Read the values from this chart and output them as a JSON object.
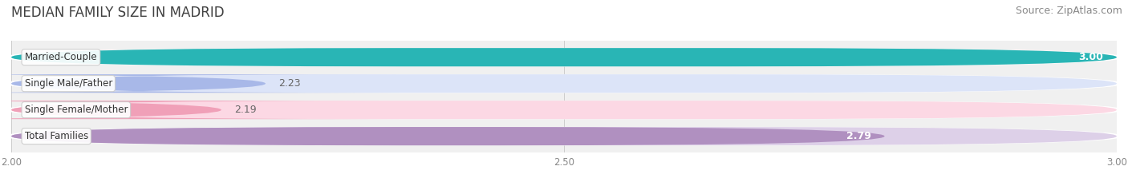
{
  "title": "MEDIAN FAMILY SIZE IN MADRID",
  "source": "Source: ZipAtlas.com",
  "categories": [
    "Married-Couple",
    "Single Male/Father",
    "Single Female/Mother",
    "Total Families"
  ],
  "values": [
    3.0,
    2.23,
    2.19,
    2.79
  ],
  "value_labels": [
    "3.00",
    "2.23",
    "2.19",
    "2.79"
  ],
  "bar_colors": [
    "#29b5b5",
    "#a8b8e8",
    "#f0a0b8",
    "#b090c0"
  ],
  "bar_bg_colors": [
    "#daf0f0",
    "#dce4f8",
    "#fcd8e4",
    "#ddd0e8"
  ],
  "label_inside": [
    true,
    false,
    false,
    true
  ],
  "xlim": [
    2.0,
    3.0
  ],
  "xticks": [
    2.0,
    2.5,
    3.0
  ],
  "xtick_labels": [
    "2.00",
    "2.50",
    "3.00"
  ],
  "figsize": [
    14.06,
    2.33
  ],
  "dpi": 100,
  "title_fontsize": 12,
  "source_fontsize": 9,
  "bar_label_fontsize": 9,
  "cat_label_fontsize": 8.5,
  "background_color": "#ffffff",
  "bar_area_bg": "#f0f0f0"
}
